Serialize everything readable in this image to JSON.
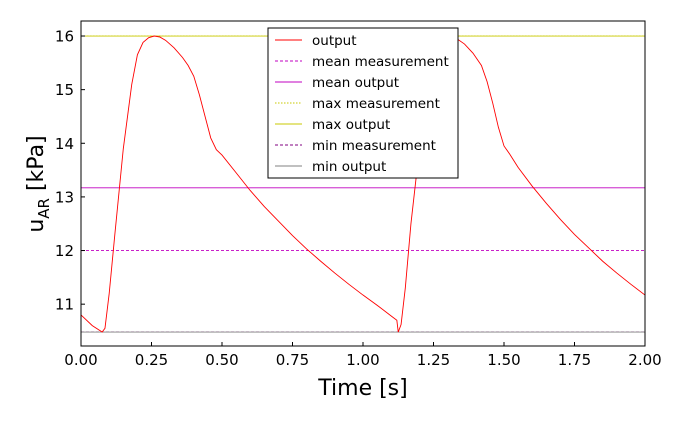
{
  "chart_data": {
    "type": "line",
    "xlabel": "Time [s]",
    "ylabel": {
      "main": "u",
      "sub": "AR",
      "unit": " [kPa]"
    },
    "xlim": [
      0.0,
      2.0
    ],
    "ylim": [
      10.22,
      16.28
    ],
    "xticks": [
      "0.00",
      "0.25",
      "0.50",
      "0.75",
      "1.00",
      "1.25",
      "1.50",
      "1.75",
      "2.00"
    ],
    "yticks": [
      "11",
      "12",
      "13",
      "14",
      "15",
      "16"
    ],
    "grid": false,
    "legend_position": "top-center",
    "series": [
      {
        "name": "output",
        "style": "solid",
        "color": "#ff0000",
        "x": [
          0.0,
          0.04,
          0.075,
          0.085,
          0.1,
          0.12,
          0.15,
          0.18,
          0.2,
          0.22,
          0.24,
          0.26,
          0.28,
          0.3,
          0.33,
          0.36,
          0.38,
          0.4,
          0.42,
          0.44,
          0.46,
          0.48,
          0.5,
          0.55,
          0.6,
          0.65,
          0.7,
          0.75,
          0.8,
          0.85,
          0.9,
          0.95,
          1.0,
          1.05,
          1.1,
          1.12,
          1.125,
          1.135,
          1.15,
          1.17,
          1.2,
          1.23,
          1.25,
          1.27,
          1.29,
          1.31,
          1.33,
          1.36,
          1.39,
          1.42,
          1.44,
          1.46,
          1.48,
          1.5,
          1.52,
          1.55,
          1.6,
          1.65,
          1.7,
          1.75,
          1.8,
          1.85,
          1.9,
          1.95,
          2.0
        ],
        "y": [
          10.8,
          10.6,
          10.48,
          10.55,
          11.2,
          12.3,
          13.9,
          15.1,
          15.65,
          15.88,
          15.97,
          16.0,
          15.98,
          15.92,
          15.78,
          15.6,
          15.45,
          15.25,
          14.9,
          14.5,
          14.1,
          13.88,
          13.78,
          13.45,
          13.12,
          12.82,
          12.55,
          12.28,
          12.03,
          11.8,
          11.58,
          11.37,
          11.17,
          10.98,
          10.78,
          10.7,
          10.48,
          10.62,
          11.3,
          12.5,
          13.9,
          15.1,
          15.65,
          15.9,
          15.99,
          16.0,
          15.96,
          15.85,
          15.68,
          15.45,
          15.15,
          14.75,
          14.3,
          13.95,
          13.8,
          13.55,
          13.2,
          12.88,
          12.58,
          12.3,
          12.05,
          11.8,
          11.58,
          11.37,
          11.17
        ]
      },
      {
        "name": "mean measurement",
        "style": "dashed",
        "color": "#c000c0",
        "y": 12.0
      },
      {
        "name": "mean output",
        "style": "solid",
        "color": "#c000c0",
        "y": 13.17
      },
      {
        "name": "max measurement",
        "style": "dotted",
        "color": "#c8c800",
        "y": 16.0
      },
      {
        "name": "max output",
        "style": "solid",
        "color": "#c8c800",
        "y": 16.0
      },
      {
        "name": "min measurement",
        "style": "dashed",
        "color": "#800080",
        "y": 10.48
      },
      {
        "name": "min output",
        "style": "solid",
        "color": "#808080",
        "y": 10.48
      }
    ]
  }
}
